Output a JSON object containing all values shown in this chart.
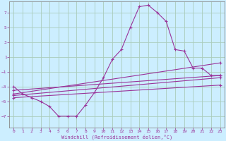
{
  "background_color": "#cceeff",
  "grid_color": "#aaccbb",
  "line_color": "#993399",
  "spine_color": "#888888",
  "xlabel": "Windchill (Refroidissement éolien,°C)",
  "ylabel_ticks": [
    -7,
    -5,
    -3,
    -1,
    1,
    3,
    5,
    7
  ],
  "xlim": [
    -0.5,
    23.5
  ],
  "ylim": [
    -8.5,
    8.5
  ],
  "xticks": [
    0,
    1,
    2,
    3,
    4,
    5,
    6,
    7,
    8,
    9,
    10,
    11,
    12,
    13,
    14,
    15,
    16,
    17,
    18,
    19,
    20,
    21,
    22,
    23
  ],
  "curve1_x": [
    0,
    1,
    2,
    3,
    4,
    5,
    6,
    7,
    8,
    9,
    10,
    11,
    12,
    13,
    14,
    15,
    16,
    17,
    18,
    19,
    20,
    21,
    22,
    23
  ],
  "curve1_y": [
    -3,
    -4,
    -4.5,
    -5,
    -5.7,
    -7,
    -7,
    -7,
    -5.5,
    -3.8,
    -1.8,
    0.7,
    2,
    5,
    7.8,
    8,
    7,
    5.8,
    2,
    1.8,
    -0.5,
    -0.5,
    -1.5,
    -1.5
  ],
  "curve2_x": [
    0,
    23
  ],
  "curve2_y": [
    -3.5,
    -1.5
  ],
  "curve3_x": [
    0,
    23
  ],
  "curve3_y": [
    -4.2,
    -1.8
  ],
  "curve4_x": [
    0,
    23
  ],
  "curve4_y": [
    -4.0,
    0.2
  ],
  "curve5_x": [
    0,
    23
  ],
  "curve5_y": [
    -4.5,
    -2.8
  ]
}
